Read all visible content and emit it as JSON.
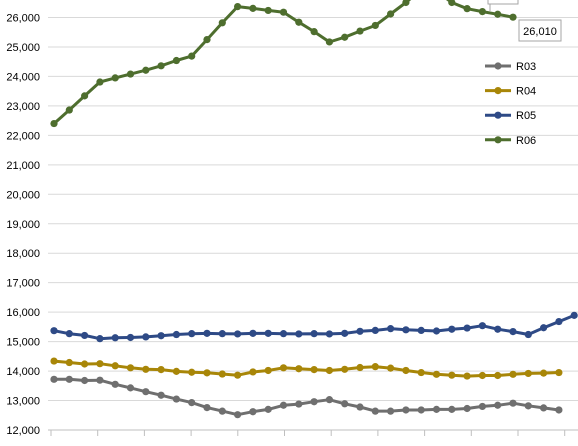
{
  "chart_data": {
    "type": "line",
    "ylim": [
      12000,
      26700
    ],
    "yticks": [
      12000,
      13000,
      14000,
      15000,
      16000,
      17000,
      18000,
      19000,
      20000,
      21000,
      22000,
      23000,
      24000,
      25000,
      26000
    ],
    "ytick_labels": [
      "12,000",
      "13,000",
      "14,000",
      "15,000",
      "16,000",
      "17,000",
      "18,000",
      "19,000",
      "20,000",
      "21,000",
      "22,000",
      "23,000",
      "24,000",
      "25,000",
      "26,000"
    ],
    "grid": true,
    "legend_position": "right",
    "series": [
      {
        "name": "R03",
        "color": "#6f6f6f",
        "values": [
          13720,
          13720,
          13680,
          13690,
          13550,
          13430,
          13300,
          13180,
          13050,
          12930,
          12760,
          12640,
          12520,
          12620,
          12700,
          12840,
          12880,
          12960,
          13030,
          12890,
          12780,
          12640,
          12640,
          12680,
          12680,
          12700,
          12700,
          12730,
          12800,
          12840,
          12910,
          12820,
          12750,
          12680
        ]
      },
      {
        "name": "R04",
        "color": "#a88608",
        "values": [
          14340,
          14290,
          14240,
          14250,
          14180,
          14110,
          14060,
          14050,
          13990,
          13960,
          13940,
          13900,
          13860,
          13970,
          14020,
          14110,
          14080,
          14050,
          14020,
          14060,
          14120,
          14150,
          14100,
          14020,
          13950,
          13890,
          13860,
          13830,
          13850,
          13850,
          13890,
          13920,
          13930,
          13950
        ]
      },
      {
        "name": "R05",
        "color": "#2e4a86",
        "values": [
          15370,
          15270,
          15210,
          15100,
          15130,
          15140,
          15160,
          15200,
          15240,
          15270,
          15280,
          15270,
          15260,
          15280,
          15280,
          15270,
          15260,
          15270,
          15260,
          15280,
          15350,
          15380,
          15440,
          15400,
          15380,
          15360,
          15420,
          15460,
          15540,
          15420,
          15340,
          15240,
          15470,
          15680,
          15890
        ]
      },
      {
        "name": "R06",
        "color": "#4e6e2e",
        "values": [
          22400,
          22860,
          23340,
          23810,
          23950,
          24080,
          24210,
          24360,
          24540,
          24690,
          25250,
          25820,
          26370,
          26310,
          26240,
          26180,
          25840,
          25520,
          25170,
          25330,
          25540,
          25730,
          26120,
          26510,
          26950,
          26900,
          26510,
          26300,
          26200,
          26110,
          26010
        ]
      }
    ],
    "annotations": [
      {
        "text": "26,010",
        "series": "R06"
      }
    ]
  }
}
